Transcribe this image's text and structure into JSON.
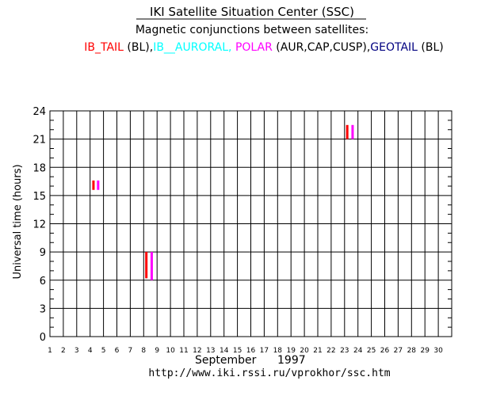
{
  "header": {
    "title": "IKI Satellite Situation Center (SSC)",
    "subtitle": "Magnetic conjunctions between satellites:",
    "legend_line": [
      {
        "text": "IB_TAIL",
        "color": "#ff0000"
      },
      {
        "text": " (BL),",
        "color": "#000000"
      },
      {
        "text": "IB__AURORAL,",
        "color": "#00ffff"
      },
      {
        "text": " POLAR",
        "color": "#ff00ff"
      },
      {
        "text": " (AUR,CAP,CUSP),",
        "color": "#000000"
      },
      {
        "text": "GEOTAIL",
        "color": "#000080"
      },
      {
        "text": " (BL)",
        "color": "#000000"
      }
    ]
  },
  "footer": {
    "month": "September",
    "year": "1997",
    "url": "http://www.iki.rssi.ru/vprokhor/ssc.htm"
  },
  "chart_data": {
    "type": "bar",
    "ylabel": "Universal time  (hours)",
    "xlabel": "",
    "x_ticks": [
      "1",
      "2",
      "3",
      "4",
      "5",
      "6",
      "7",
      "8",
      "9",
      "10",
      "11",
      "12",
      "13",
      "14",
      "15",
      "16",
      "17",
      "18",
      "19",
      "20",
      "21",
      "22",
      "23",
      "24",
      "25",
      "26",
      "27",
      "28",
      "29",
      "30"
    ],
    "y_ticks": [
      0,
      3,
      6,
      9,
      12,
      15,
      18,
      21,
      24
    ],
    "xlim": [
      1,
      31
    ],
    "ylim": [
      0,
      24
    ],
    "grid": true,
    "series": [
      {
        "name": "IB_TAIL",
        "color": "#ff0000",
        "intervals": [
          {
            "day": 4.25,
            "start": 15.6,
            "end": 16.6
          },
          {
            "day": 8.2,
            "start": 6.2,
            "end": 9.0
          },
          {
            "day": 23.2,
            "start": 21.0,
            "end": 22.5
          }
        ]
      },
      {
        "name": "POLAR",
        "color": "#ff00ff",
        "intervals": [
          {
            "day": 4.6,
            "start": 15.6,
            "end": 16.6
          },
          {
            "day": 8.6,
            "start": 6.0,
            "end": 9.0
          },
          {
            "day": 23.6,
            "start": 21.0,
            "end": 22.5
          }
        ]
      }
    ]
  }
}
